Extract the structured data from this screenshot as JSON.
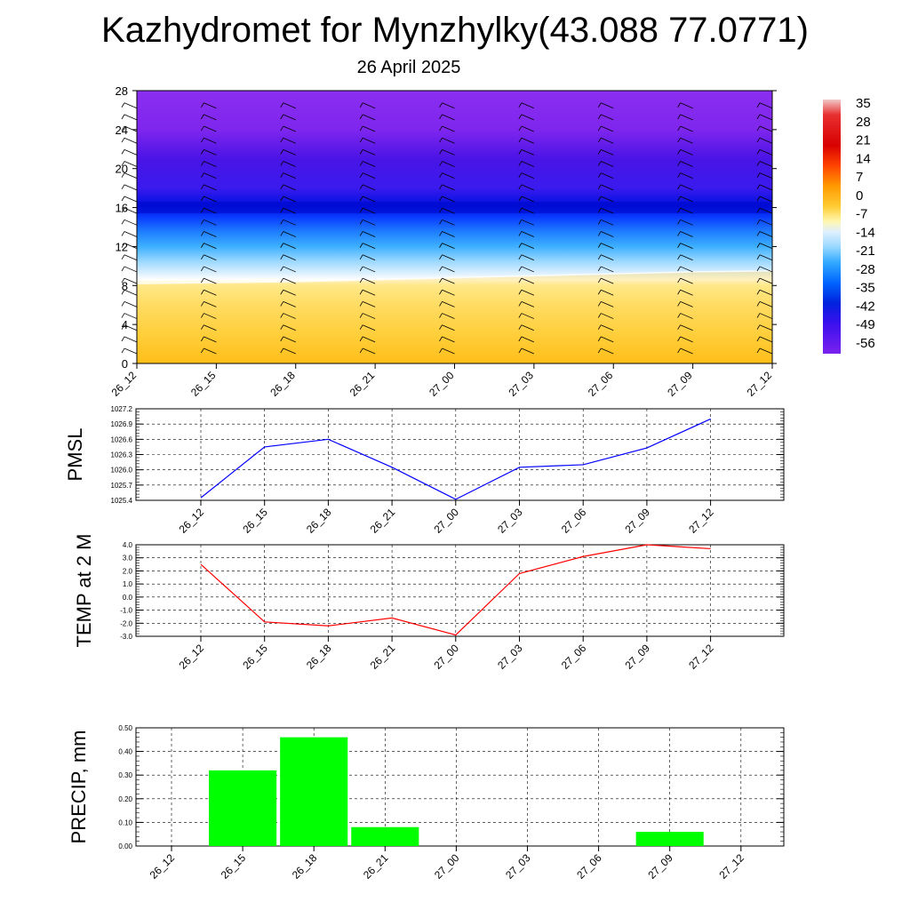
{
  "title": "Kazhydromet for Mynzhylky(43.088 77.0771)",
  "subtitle": "26 April 2025",
  "chart_data": [
    {
      "type": "heatmap",
      "title": "",
      "y_ticks": [
        0,
        4,
        8,
        12,
        16,
        20,
        24,
        28
      ],
      "ylim": [
        0,
        28
      ],
      "x_ticks": [
        "26_12",
        "26_15",
        "26_18",
        "26_21",
        "27_00",
        "27_03",
        "27_06",
        "27_09",
        "27_12"
      ],
      "colorbar": {
        "labels": [
          "35",
          "28",
          "21",
          "14",
          "7",
          "0",
          "-7",
          "-14",
          "-21",
          "-28",
          "-35",
          "-42",
          "-49",
          "-56"
        ]
      },
      "description_fields": {
        "freezing_level": [
          8.2,
          8.3,
          8.4,
          8.6,
          8.8,
          9.0,
          9.2,
          9.4,
          9.5
        ],
        "coldest_level": 16
      }
    },
    {
      "type": "line",
      "ylabel": "PMSL",
      "x": [
        "26_12",
        "26_15",
        "26_18",
        "26_21",
        "27_00",
        "27_03",
        "27_06",
        "27_09",
        "27_12"
      ],
      "values": [
        1025.45,
        1026.45,
        1026.6,
        1026.05,
        1025.42,
        1026.05,
        1026.1,
        1026.43,
        1027.0
      ],
      "ylim": [
        1025.4,
        1027.2
      ],
      "y_ticks": [
        "1025.4",
        "1025.7",
        "1026.0",
        "1026.3",
        "1026.6",
        "1026.9",
        "1027.2"
      ],
      "color": "#0000ff",
      "grid": true
    },
    {
      "type": "line",
      "ylabel": "TEMP at 2 M",
      "x": [
        "26_12",
        "26_15",
        "26_18",
        "26_21",
        "27_00",
        "27_03",
        "27_06",
        "27_09",
        "27_12"
      ],
      "values": [
        2.5,
        -1.9,
        -2.2,
        -1.6,
        -2.9,
        1.8,
        3.1,
        4.0,
        3.7
      ],
      "ylim": [
        -3.0,
        4.0
      ],
      "y_ticks": [
        "-3.0",
        "-2.0",
        "-1.0",
        "0.0",
        "1.0",
        "2.0",
        "3.0",
        "4.0"
      ],
      "color": "#ff0000",
      "grid": true
    },
    {
      "type": "bar",
      "ylabel": "PRECIP, mm",
      "categories": [
        "26_12",
        "26_15",
        "26_18",
        "26_21",
        "27_00",
        "27_03",
        "27_06",
        "27_09",
        "27_12"
      ],
      "values": [
        0,
        0.32,
        0.46,
        0.08,
        0,
        0,
        0,
        0.06,
        0
      ],
      "ylim": [
        0,
        0.5
      ],
      "y_ticks": [
        "0.00",
        "0.10",
        "0.20",
        "0.30",
        "0.40",
        "0.50"
      ],
      "color": "#00ff00",
      "grid": true
    }
  ]
}
